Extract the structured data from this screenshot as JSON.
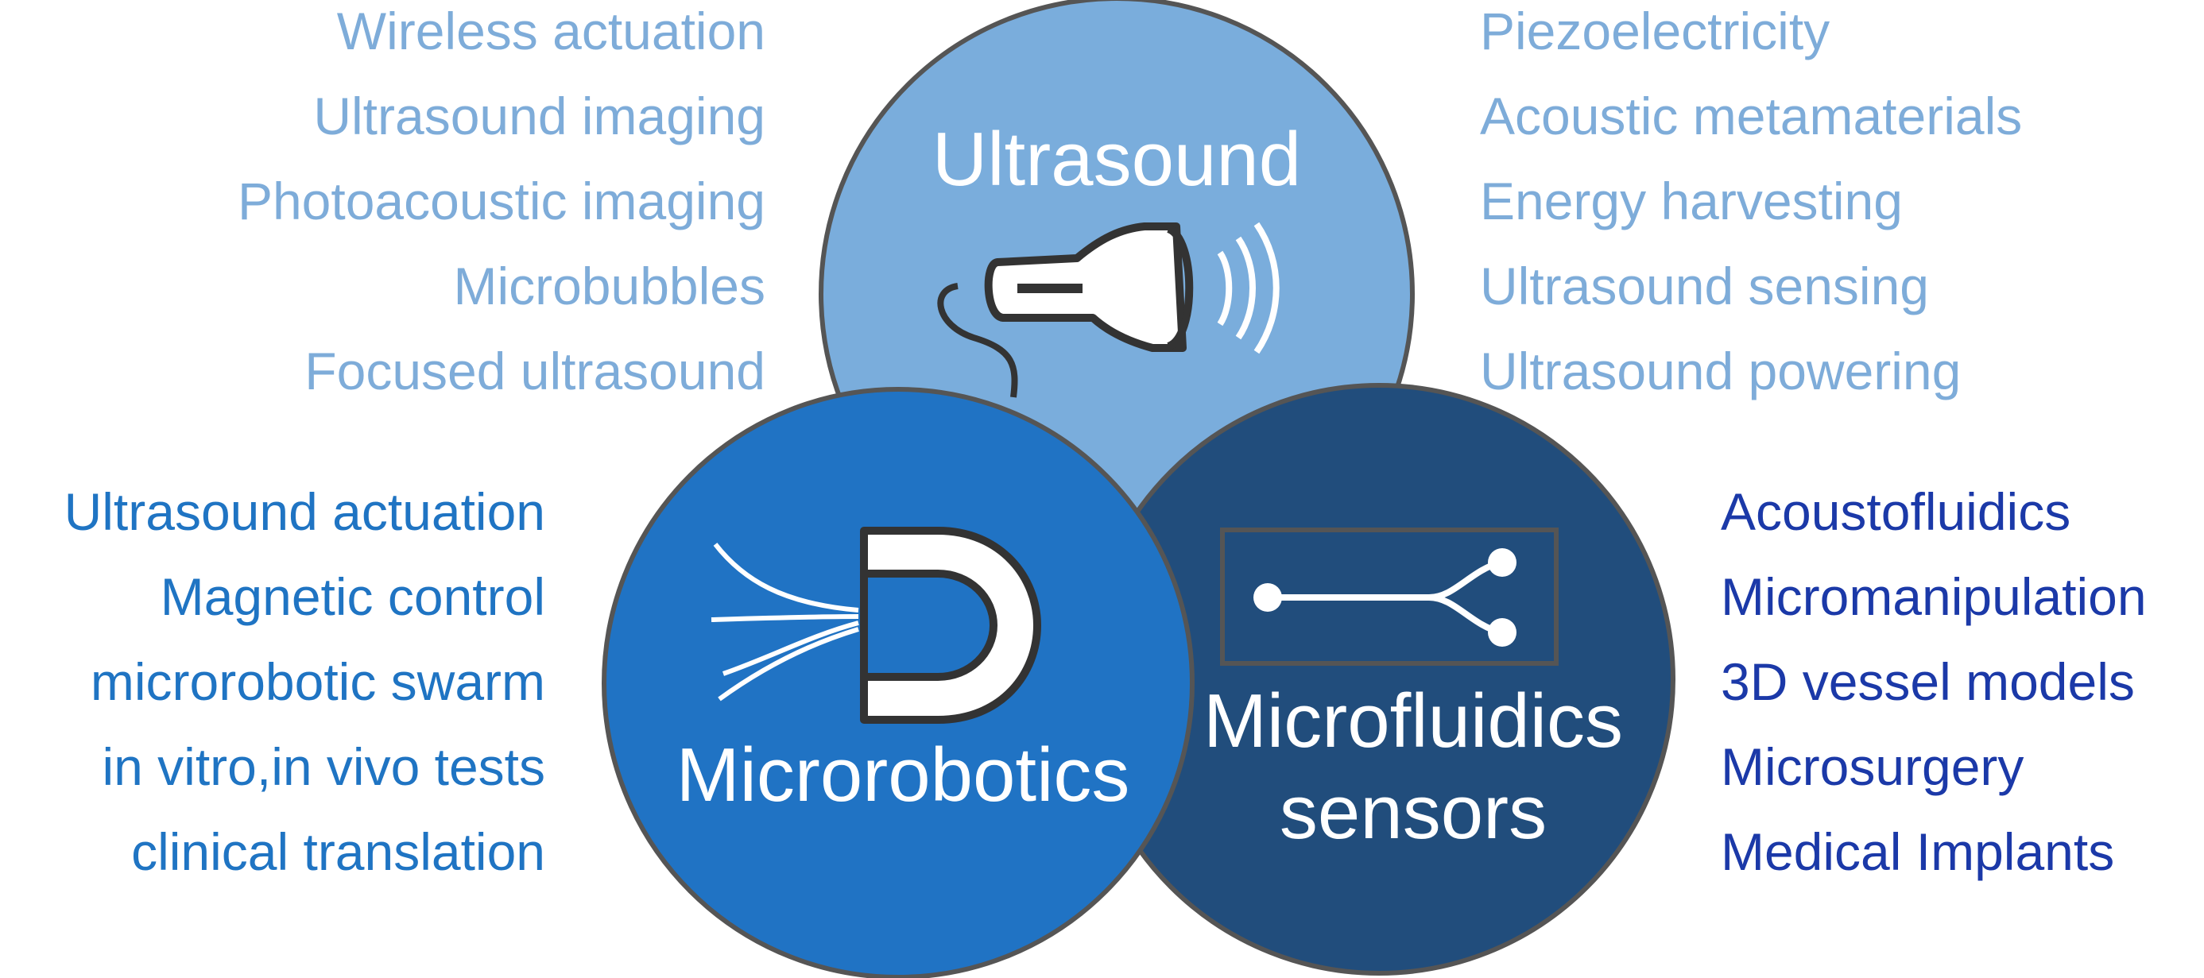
{
  "diagram": {
    "colors": {
      "ultrasound_circle": "#7aaddc",
      "microrobotics_circle": "#2073c4",
      "microfluidics_circle": "#214d7c",
      "circle_outline": "#555555",
      "icon_stroke": "#333333",
      "ultrasound_text": "#7eacd9",
      "microrobotics_text": "#1f74c3",
      "microfluidics_text": "#1b39a8",
      "title_text": "#ffffff"
    },
    "ultrasound": {
      "title": "Ultrasound",
      "icon": "ultrasound-probe-icon",
      "left_items": [
        "Wireless actuation",
        "Ultrasound imaging",
        "Photoacoustic imaging",
        "Microbubbles",
        "Focused ultrasound"
      ],
      "right_items": [
        "Piezoelectricity",
        "Acoustic metamaterials",
        "Energy harvesting",
        "Ultrasound sensing",
        "Ultrasound powering"
      ]
    },
    "microrobotics": {
      "title": "Microrobotics",
      "icon": "magnet-icon",
      "items": [
        "Ultrasound actuation",
        "Magnetic control",
        "microrobotic swarm",
        "in vitro,in vivo tests",
        "clinical translation"
      ]
    },
    "microfluidics": {
      "title_line1": "Microfluidics",
      "title_line2": "sensors",
      "icon": "microfluidic-channel-icon",
      "items": [
        "Acoustofluidics",
        "Micromanipulation",
        "3D vessel models",
        "Microsurgery",
        "Medical Implants"
      ]
    }
  }
}
